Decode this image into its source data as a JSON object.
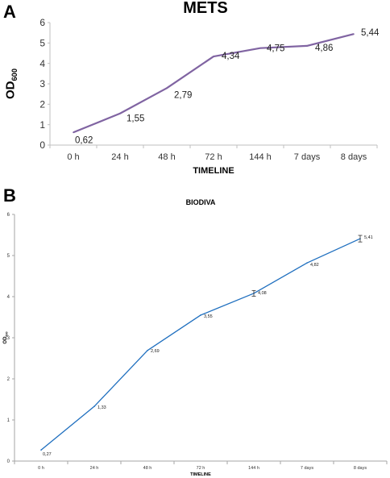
{
  "panels": [
    {
      "letter": "A"
    },
    {
      "letter": "B"
    }
  ],
  "chart_data": [
    {
      "type": "line",
      "title": "METS",
      "xlabel": "TIMELINE",
      "ylabel": "OD",
      "ylabel_sub": "600",
      "categories": [
        "0 h",
        "24 h",
        "48 h",
        "72 h",
        "144 h",
        "7 days",
        "8 days"
      ],
      "values": [
        0.62,
        1.55,
        2.79,
        4.34,
        4.75,
        4.86,
        5.44
      ],
      "data_labels": [
        "0,62",
        "1,55",
        "2,79",
        "4,34",
        "4,75",
        "4,86",
        "5,44"
      ],
      "ylim": [
        0,
        6
      ],
      "yticks": [
        0,
        1,
        2,
        3,
        4,
        5,
        6
      ],
      "grid": false,
      "color": "#8064a2"
    },
    {
      "type": "line",
      "title": "BIODIVA",
      "xlabel": "TIMELINE",
      "ylabel": "OD",
      "ylabel_sub": "600",
      "categories": [
        "0 h",
        "24 h",
        "48 h",
        "72 h",
        "144 h",
        "7 days",
        "8 days"
      ],
      "values": [
        0.27,
        1.33,
        2.69,
        3.55,
        4.08,
        4.82,
        5.41
      ],
      "data_labels": [
        "0,27",
        "1,33",
        "2,69",
        "3,55",
        "4,08",
        "4,82",
        "5,41"
      ],
      "error_bars": [
        null,
        null,
        null,
        null,
        0.07,
        null,
        0.08
      ],
      "ylim": [
        0,
        6
      ],
      "yticks": [
        0,
        1,
        2,
        3,
        4,
        5,
        6
      ],
      "grid": false,
      "color": "#1f6fbf"
    }
  ]
}
